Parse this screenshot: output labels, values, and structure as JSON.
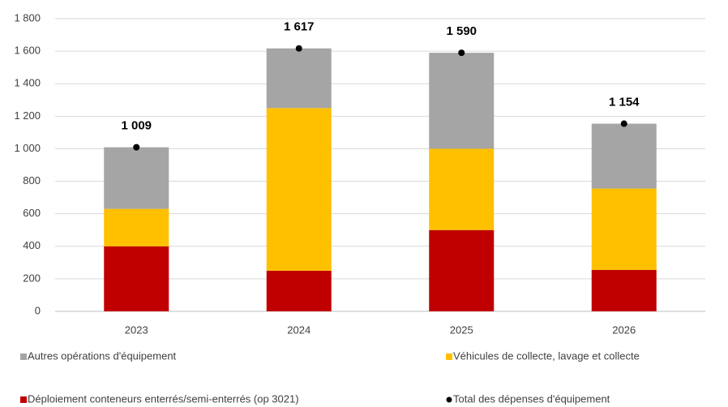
{
  "chart_data": {
    "type": "bar",
    "stacked": true,
    "categories": [
      "2023",
      "2024",
      "2025",
      "2026"
    ],
    "series": [
      {
        "name": "Autres opérations d'équipement",
        "color": "#a5a5a5",
        "values": [
          379,
          367,
          590,
          399
        ]
      },
      {
        "name": "Véhicules de collecte, lavage et collecte",
        "color": "#ffc000",
        "values": [
          230,
          1000,
          500,
          500
        ]
      },
      {
        "name": "Déploiement conteneurs enterrés/semi-enterrés (op 3021)",
        "color": "#c00000",
        "values": [
          400,
          250,
          500,
          255
        ]
      },
      {
        "name": "Total des dépenses d'équipement",
        "type": "dot",
        "color": "#000000",
        "values": [
          1009,
          1617,
          1590,
          1154
        ],
        "value_labels": [
          "1 009",
          "1 617",
          "1 590",
          "1 154"
        ]
      }
    ],
    "ylim": [
      0,
      1800
    ],
    "yticks": [
      0,
      200,
      400,
      600,
      800,
      {
        "value": 1000,
        "label": "1 000"
      },
      {
        "value": 1200,
        "label": "1 200"
      },
      {
        "value": 1400,
        "label": "1 400"
      },
      {
        "value": 1600,
        "label": "1 600"
      },
      {
        "value": 1800,
        "label": "1 800"
      }
    ],
    "grid": true
  }
}
